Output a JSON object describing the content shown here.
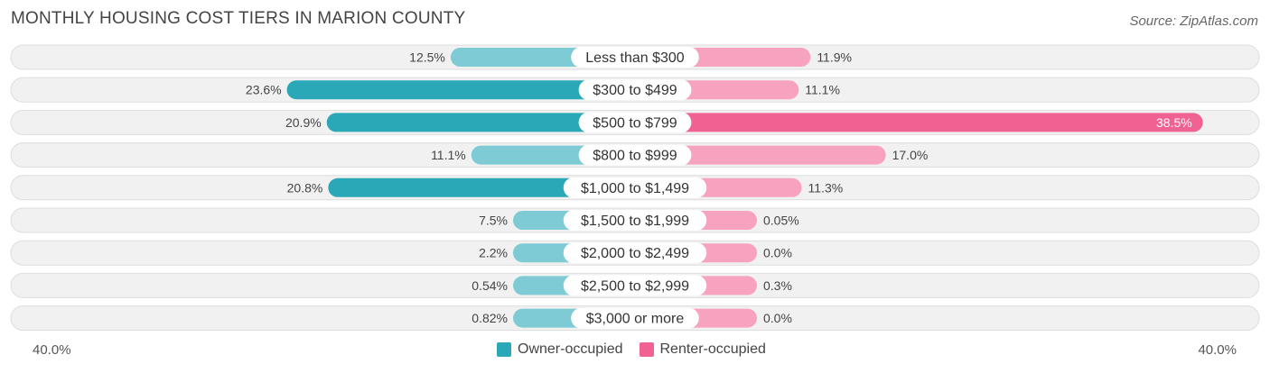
{
  "chart_data": {
    "type": "bar",
    "orientation": "diverging-horizontal",
    "title": "MONTHLY HOUSING COST TIERS IN MARION COUNTY",
    "source": "Source: ZipAtlas.com",
    "categories": [
      "Less than $300",
      "$300 to $499",
      "$500 to $799",
      "$800 to $999",
      "$1,000 to $1,499",
      "$1,500 to $1,999",
      "$2,000 to $2,499",
      "$2,500 to $2,999",
      "$3,000 or more"
    ],
    "series": [
      {
        "name": "Owner-occupied",
        "color": "#2aa8b8",
        "values": [
          12.5,
          23.6,
          20.9,
          11.1,
          20.8,
          7.5,
          2.2,
          0.54,
          0.82
        ],
        "labels": [
          "12.5%",
          "23.6%",
          "20.9%",
          "11.1%",
          "20.8%",
          "7.5%",
          "2.2%",
          "0.54%",
          "0.82%"
        ]
      },
      {
        "name": "Renter-occupied",
        "color": "#f06292",
        "values": [
          11.9,
          11.1,
          38.5,
          17.0,
          11.3,
          0.05,
          0.0,
          0.3,
          0.0
        ],
        "labels": [
          "11.9%",
          "11.1%",
          "38.5%",
          "17.0%",
          "11.3%",
          "0.05%",
          "0.0%",
          "0.3%",
          "0.0%"
        ]
      }
    ],
    "axis": {
      "min_label": "40.0%",
      "max_label": "40.0%",
      "range": [
        -40,
        40
      ]
    }
  }
}
